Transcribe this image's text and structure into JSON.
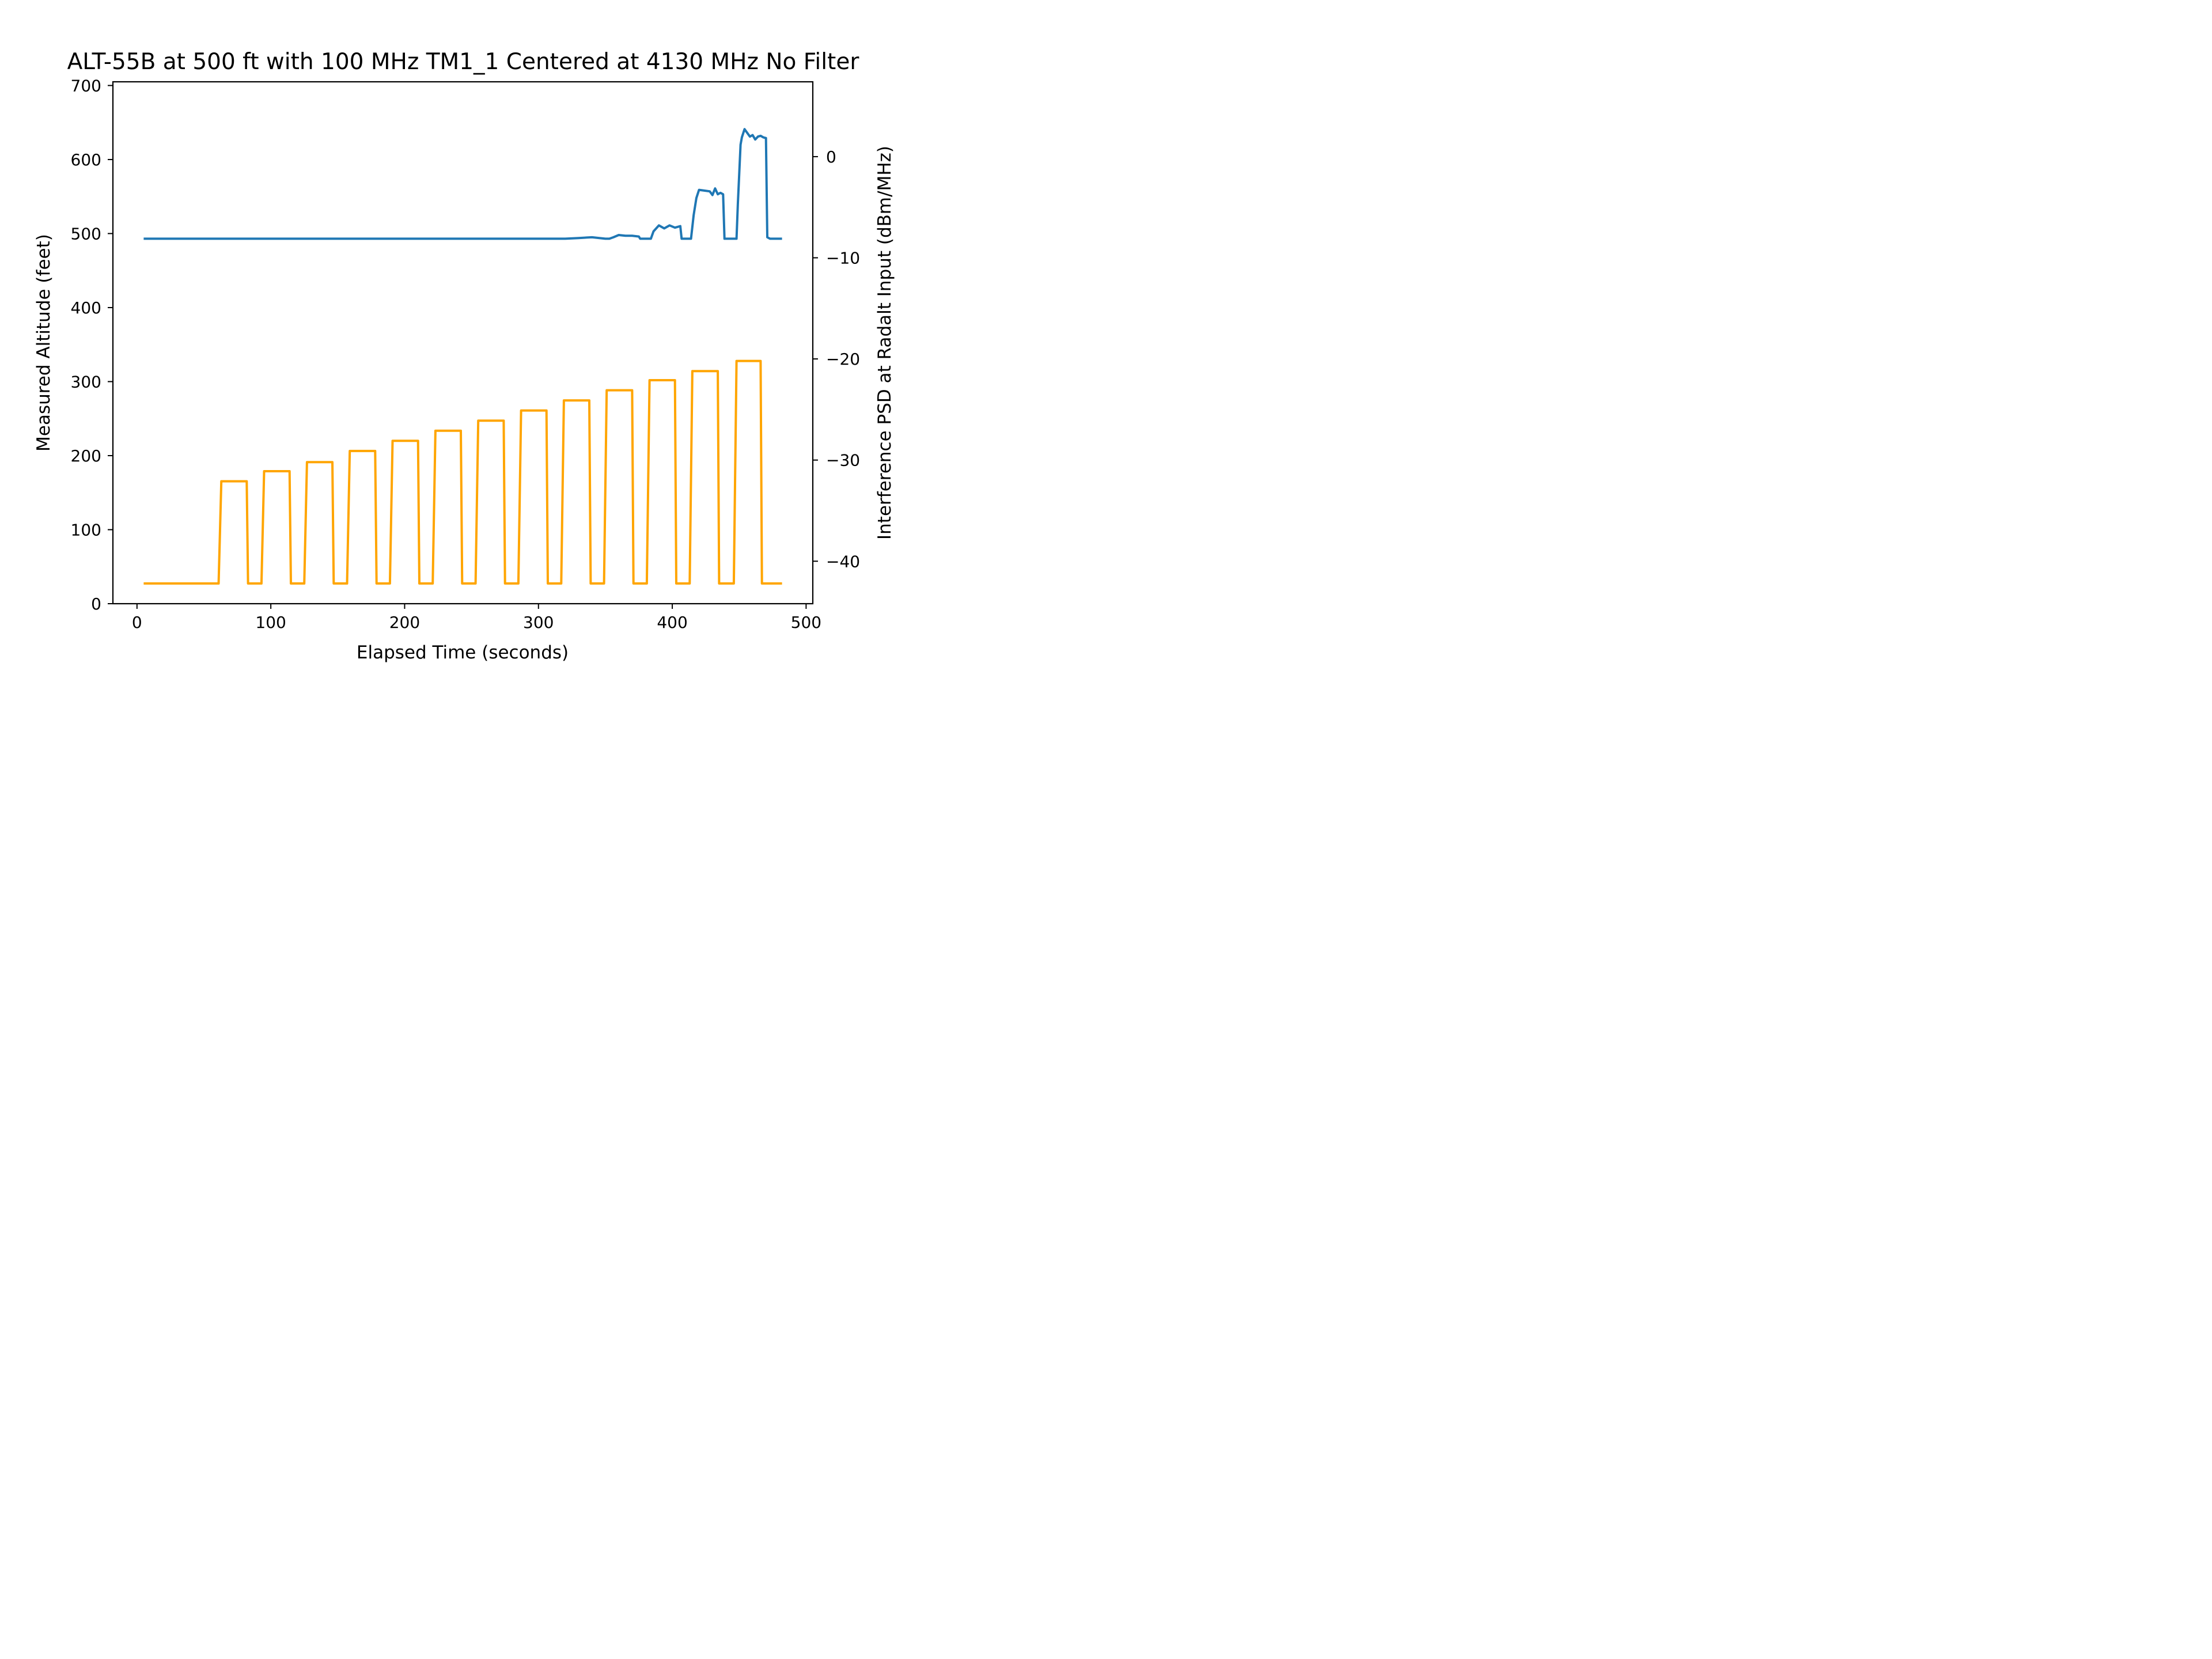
{
  "chart_data": {
    "type": "line",
    "title": "ALT-55B at 500 ft with 100 MHz TM1_1 Centered at 4130 MHz No Filter",
    "xlabel": "Elapsed Time (seconds)",
    "ylabel": "Measured Altitude (feet)",
    "y2label": "Interference PSD at Radalt Input (dBm/MHz)",
    "xlim": [
      -18,
      505
    ],
    "ylim": [
      0,
      705
    ],
    "y2lim": [
      -44.2,
      7.4
    ],
    "xticks": [
      0,
      100,
      200,
      300,
      400,
      500
    ],
    "yticks": [
      0,
      100,
      200,
      300,
      400,
      500,
      600,
      700
    ],
    "y2ticks": [
      -40,
      -30,
      -20,
      -10,
      0
    ],
    "y2tick_labels": [
      "−40",
      "−30",
      "−20",
      "−10",
      "0"
    ],
    "grid": false,
    "series": [
      {
        "axis": "left",
        "color": "#1f77b4",
        "x": [
          5,
          20,
          40,
          60,
          80,
          100,
          120,
          140,
          160,
          180,
          200,
          220,
          240,
          260,
          280,
          300,
          320,
          330,
          340,
          350,
          353,
          356,
          360,
          365,
          370,
          375,
          376,
          380,
          384,
          386,
          390,
          394,
          398,
          402,
          406,
          407,
          410,
          414,
          416,
          418,
          420,
          424,
          428,
          430,
          432,
          434,
          436,
          438,
          439,
          442,
          446,
          448,
          449,
          451,
          452,
          454,
          458,
          460,
          462,
          464,
          466,
          468,
          470,
          471,
          473,
          476,
          478,
          482
        ],
        "y": [
          493,
          493,
          493,
          493,
          493,
          493,
          493,
          493,
          493,
          493,
          493,
          493,
          493,
          493,
          493,
          493,
          493,
          494,
          495,
          493,
          493,
          495,
          498,
          497,
          497,
          496,
          493,
          493,
          493,
          503,
          511,
          507,
          511,
          508,
          510,
          493,
          493,
          493,
          525,
          548,
          559,
          558,
          557,
          552,
          561,
          553,
          555,
          553,
          493,
          493,
          493,
          493,
          540,
          620,
          630,
          641,
          631,
          633,
          627,
          631,
          632,
          630,
          629,
          495,
          493,
          493,
          493,
          493
        ]
      },
      {
        "axis": "right",
        "color": "#ffa500",
        "x": [
          5,
          61,
          63,
          82,
          83,
          93,
          95,
          114,
          115,
          125,
          127,
          146,
          147,
          157,
          159,
          178,
          179,
          189,
          191,
          210,
          211,
          221,
          223,
          242,
          243,
          253,
          255,
          274,
          275,
          285,
          287,
          306,
          307,
          317,
          319,
          338,
          339,
          349,
          351,
          370,
          371,
          381,
          383,
          402,
          403,
          413,
          415,
          434,
          435,
          446,
          448,
          466,
          467,
          482
        ],
        "y": [
          -42.2,
          -42.2,
          -32.1,
          -32.1,
          -42.2,
          -42.2,
          -31.1,
          -31.1,
          -42.2,
          -42.2,
          -30.2,
          -30.2,
          -42.2,
          -42.2,
          -29.1,
          -29.1,
          -42.2,
          -42.2,
          -28.1,
          -28.1,
          -42.2,
          -42.2,
          -27.1,
          -27.1,
          -42.2,
          -42.2,
          -26.1,
          -26.1,
          -42.2,
          -42.2,
          -25.1,
          -25.1,
          -42.2,
          -42.2,
          -24.1,
          -24.1,
          -42.2,
          -42.2,
          -23.1,
          -23.1,
          -42.2,
          -42.2,
          -22.1,
          -22.1,
          -42.2,
          -42.2,
          -21.2,
          -21.2,
          -42.2,
          -42.2,
          -20.2,
          -20.2,
          -42.2,
          -42.2
        ]
      }
    ]
  }
}
